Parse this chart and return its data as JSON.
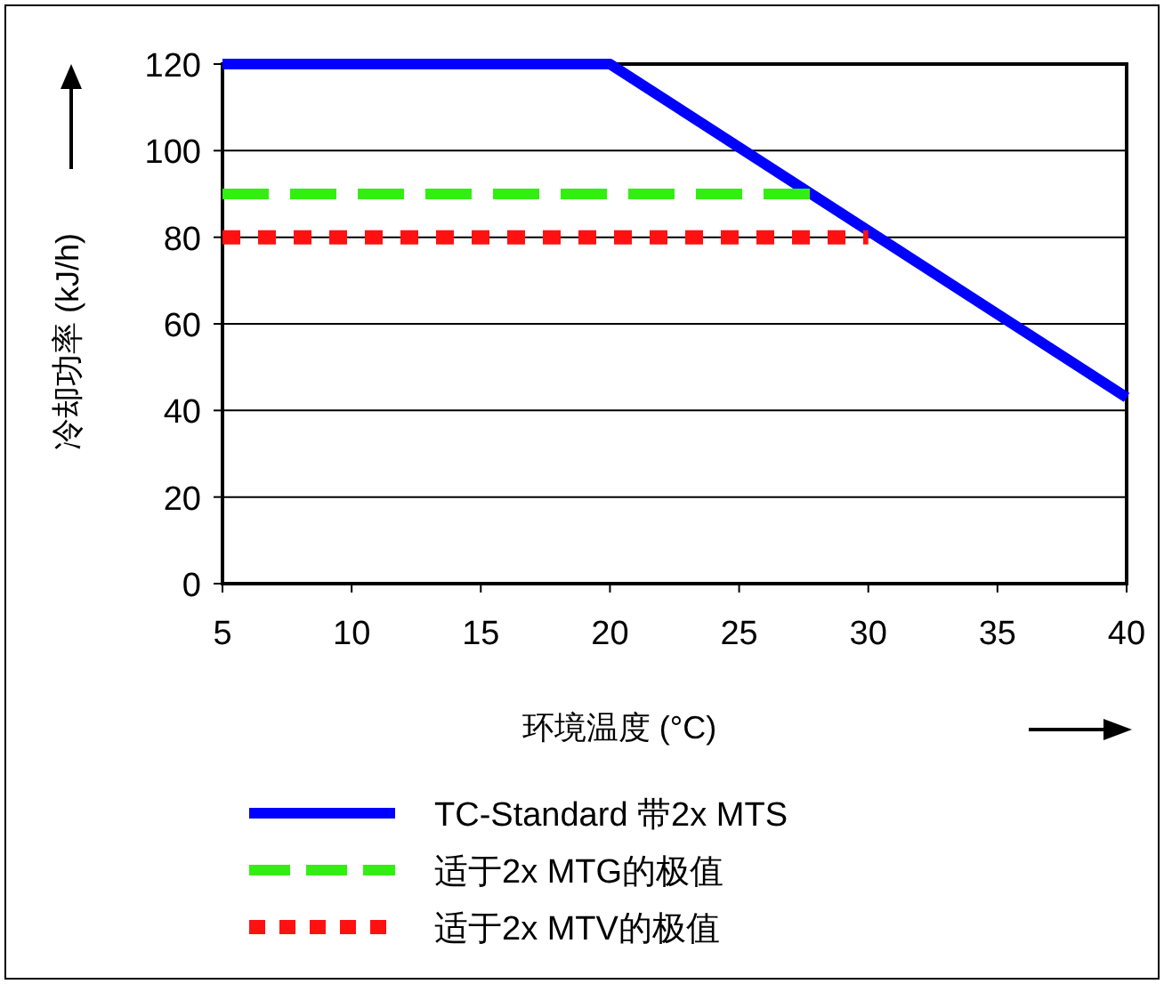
{
  "chart_data": {
    "type": "line",
    "xlabel": "环境温度 (°C)",
    "ylabel": "冷却功率 (kJ/h)",
    "xlim": [
      5,
      40
    ],
    "xticks": [
      5,
      10,
      15,
      20,
      25,
      30,
      35,
      40
    ],
    "ylim": [
      0,
      120
    ],
    "yticks": [
      0,
      20,
      40,
      60,
      80,
      100,
      120
    ],
    "grid": "y",
    "legend": "bottom",
    "marker": "none",
    "series": [
      {
        "name": "TC-Standard 带2x MTS",
        "color": "#0000ff",
        "x": [
          5,
          20,
          40
        ],
        "values": [
          120,
          120,
          43
        ],
        "line_style": "solid"
      },
      {
        "name": "适于2x MTG的极值",
        "color": "#33ee11",
        "x": [
          5,
          28
        ],
        "values": [
          90,
          90
        ],
        "line_style": "dashed"
      },
      {
        "name": "适于2x MTV的极值",
        "color": "#ff1111",
        "x": [
          5,
          30
        ],
        "values": [
          80,
          80
        ],
        "line_style": "dotted"
      }
    ]
  }
}
